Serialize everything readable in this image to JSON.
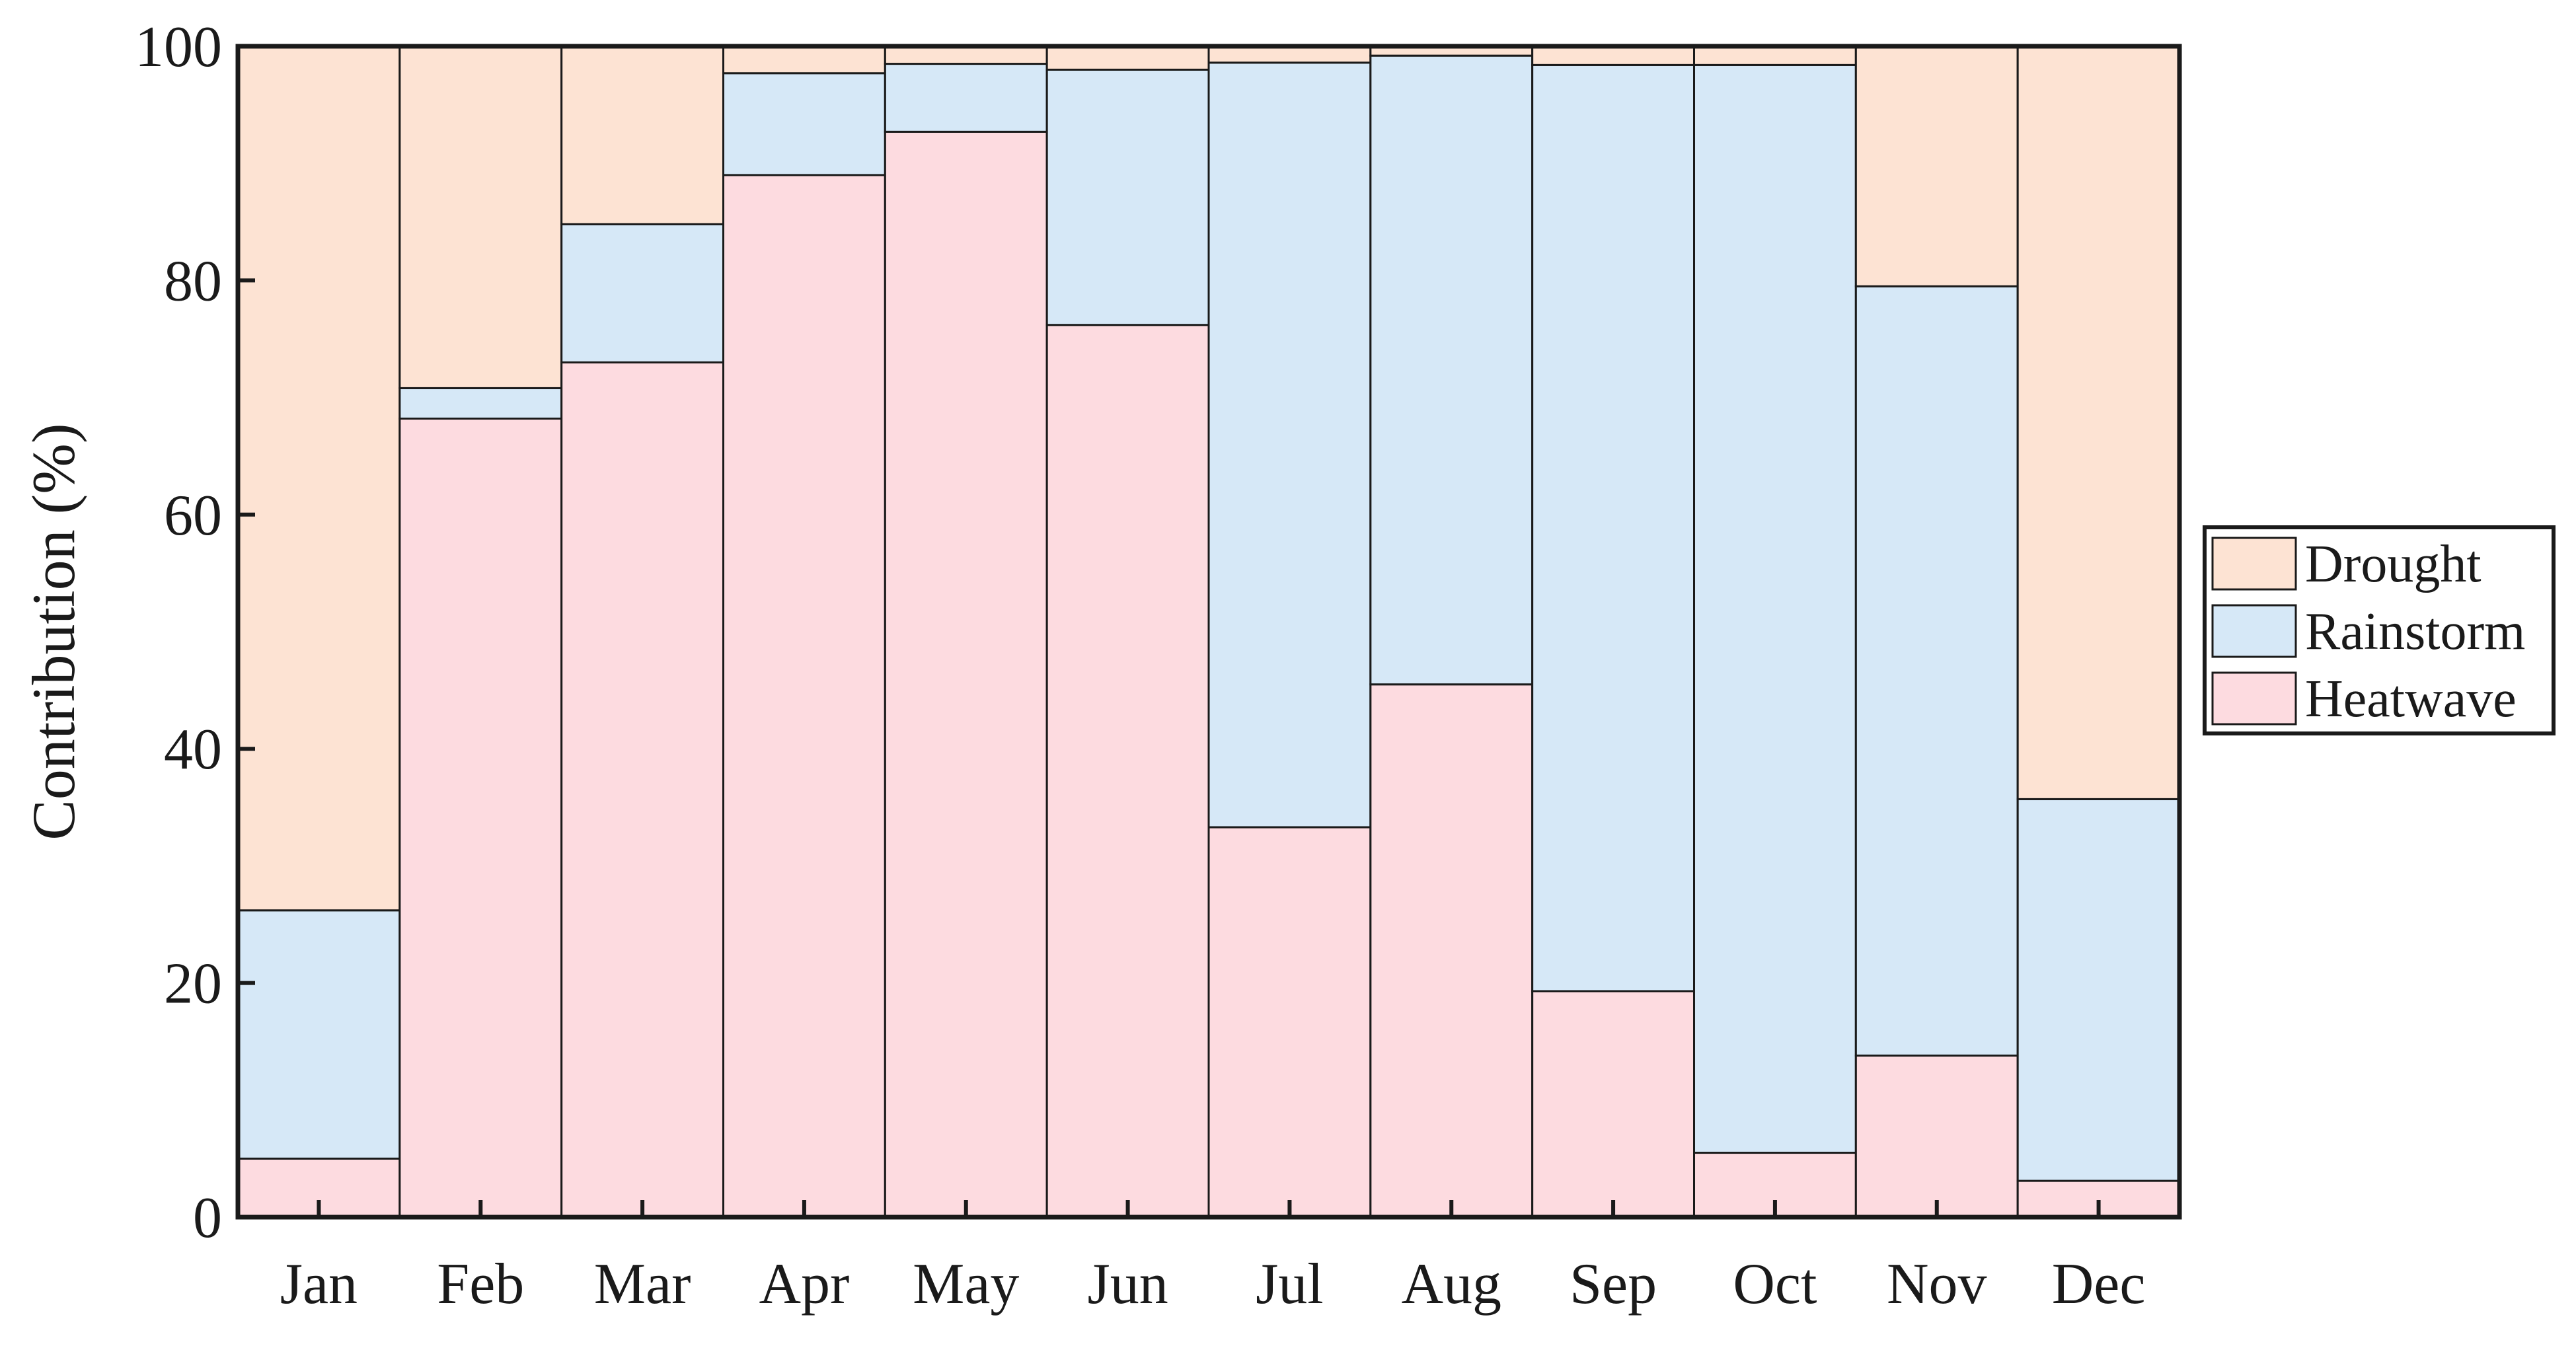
{
  "chart_data": {
    "type": "bar",
    "stacked": true,
    "categories": [
      "Jan",
      "Feb",
      "Mar",
      "Apr",
      "May",
      "Jun",
      "Jul",
      "Aug",
      "Sep",
      "Oct",
      "Nov",
      "Dec"
    ],
    "series": [
      {
        "name": "Heatwave",
        "color": "#fddbe0",
        "values": [
          5,
          68.2,
          73,
          89,
          92.7,
          76.2,
          33.3,
          45.5,
          19.3,
          5.5,
          13.8,
          3.1
        ]
      },
      {
        "name": "Rainstorm",
        "color": "#d6e8f7",
        "values": [
          21.2,
          2.6,
          11.8,
          8.7,
          5.8,
          21.8,
          65.3,
          53.7,
          79.1,
          92.9,
          65.7,
          32.6
        ]
      },
      {
        "name": "Drought",
        "color": "#fde3d3",
        "values": [
          73.8,
          29.2,
          15.2,
          2.3,
          1.5,
          2,
          1.4,
          0.8,
          1.6,
          1.6,
          20.5,
          64.3
        ]
      }
    ],
    "legend_order": [
      "Drought",
      "Rainstorm",
      "Heatwave"
    ],
    "title": "",
    "xlabel": "",
    "ylabel": "Contribution  (%)",
    "ylim": [
      0,
      100
    ],
    "yticks": [
      0,
      20,
      40,
      60,
      80,
      100
    ],
    "grid": false,
    "legend_position": "right"
  }
}
